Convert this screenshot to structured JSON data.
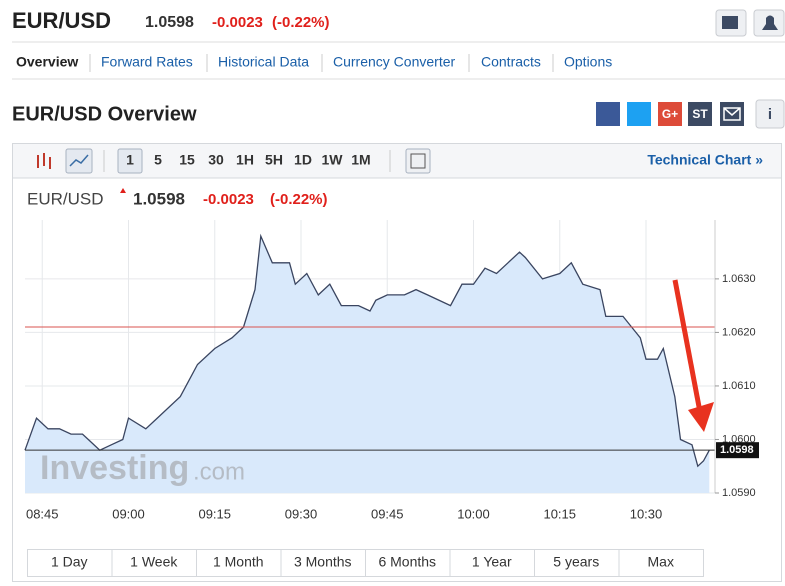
{
  "header": {
    "symbol": "EUR/USD",
    "price": "1.0598",
    "change": "-0.0023",
    "change_pct": "(-0.22%)"
  },
  "tabs": [
    "Overview",
    "Forward Rates",
    "Historical Data",
    "Currency Converter",
    "Contracts",
    "Options"
  ],
  "section_title": "EUR/USD Overview",
  "share": [
    "G+",
    "ST",
    "i"
  ],
  "toolbar": {
    "intervals": [
      "1",
      "5",
      "15",
      "30",
      "1H",
      "5H",
      "1D",
      "1W",
      "1M"
    ],
    "technical_chart": "Technical Chart »"
  },
  "chart_data": {
    "type": "line",
    "title": "EUR/USD",
    "price": "1.0598",
    "change": "-0.0023",
    "change_pct": "(-0.22%)",
    "watermark": [
      "Investing",
      ".com"
    ],
    "x": [
      "08:42",
      "08:44",
      "08:46",
      "08:48",
      "08:50",
      "08:52",
      "08:53",
      "08:55",
      "08:57",
      "08:59",
      "09:00",
      "09:03",
      "09:05",
      "09:09",
      "09:12",
      "09:15",
      "09:18",
      "09:20",
      "09:22",
      "09:23",
      "09:25",
      "09:28",
      "09:29",
      "09:31",
      "09:33",
      "09:35",
      "09:37",
      "09:40",
      "09:42",
      "09:43",
      "09:45",
      "09:48",
      "09:50",
      "09:52",
      "09:56",
      "09:58",
      "10:00",
      "10:02",
      "10:04",
      "10:06",
      "10:08",
      "10:09",
      "10:12",
      "10:15",
      "10:17",
      "10:19",
      "10:22",
      "10:23",
      "10:26",
      "10:29",
      "10:30",
      "10:32",
      "10:33",
      "10:35",
      "10:36",
      "10:38",
      "10:39",
      "10:40",
      "10:41"
    ],
    "values": [
      1.0598,
      1.0604,
      1.0602,
      1.0602,
      1.0601,
      1.0601,
      1.06,
      1.0598,
      1.0599,
      1.06,
      1.0604,
      1.0602,
      1.0604,
      1.0608,
      1.0614,
      1.0617,
      1.0619,
      1.0621,
      1.0628,
      1.0638,
      1.0633,
      1.0633,
      1.0629,
      1.0631,
      1.0627,
      1.0629,
      1.0625,
      1.0625,
      1.0624,
      1.0626,
      1.0627,
      1.0627,
      1.0628,
      1.0627,
      1.0625,
      1.0629,
      1.0629,
      1.0632,
      1.0631,
      1.0633,
      1.0635,
      1.0634,
      1.063,
      1.0631,
      1.0633,
      1.0629,
      1.0628,
      1.0623,
      1.0623,
      1.0619,
      1.0615,
      1.0615,
      1.0617,
      1.0608,
      1.06,
      1.0599,
      1.0595,
      1.0596,
      1.0598
    ],
    "color": "#3a4560",
    "fill": "#d9e9fb",
    "xlim": [
      "08:42",
      "10:42"
    ],
    "xticks": [
      "08:45",
      "09:00",
      "09:15",
      "09:30",
      "09:45",
      "10:00",
      "10:15",
      "10:30"
    ],
    "ylim": [
      1.059,
      1.0641
    ],
    "yticks": [
      {
        "value": 1.059,
        "label": "1.0590"
      },
      {
        "value": 1.06,
        "label": "1.0600"
      },
      {
        "value": 1.061,
        "label": "1.0610"
      },
      {
        "value": 1.062,
        "label": "1.0620"
      },
      {
        "value": 1.063,
        "label": "1.0630"
      }
    ],
    "reference_line": 1.0621,
    "reference_color": "#d9534f",
    "last_price": 1.0598,
    "grid": true
  },
  "ranges": [
    "1 Day",
    "1 Week",
    "1 Month",
    "3 Months",
    "6 Months",
    "1 Year",
    "5 years",
    "Max"
  ]
}
